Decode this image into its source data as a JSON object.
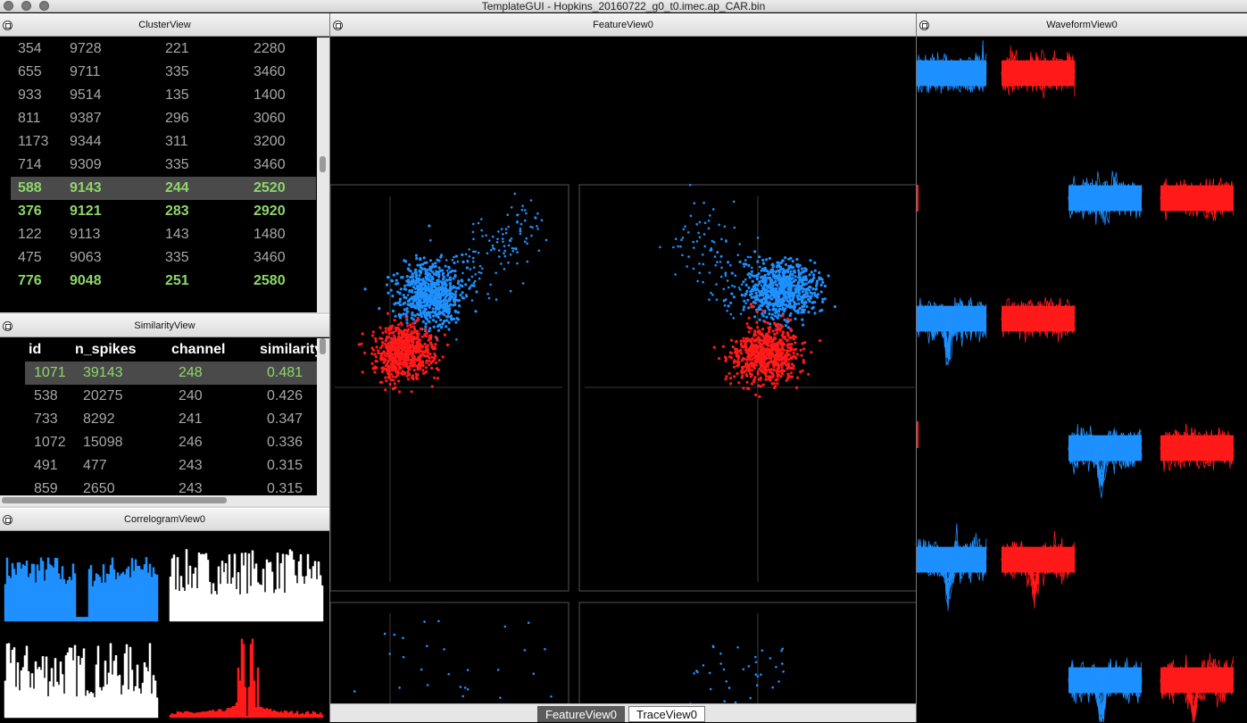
{
  "window": {
    "title": "TemplateGUI - Hopkins_20160722_g0_t0.imec.ap_CAR.bin"
  },
  "cluster_view": {
    "title": "ClusterView",
    "rows": [
      {
        "id": "354",
        "n_spikes": "9728",
        "channel": "221",
        "depth": "2280",
        "state": "normal"
      },
      {
        "id": "655",
        "n_spikes": "9711",
        "channel": "335",
        "depth": "3460",
        "state": "normal"
      },
      {
        "id": "933",
        "n_spikes": "9514",
        "channel": "135",
        "depth": "1400",
        "state": "normal"
      },
      {
        "id": "811",
        "n_spikes": "9387",
        "channel": "296",
        "depth": "3060",
        "state": "normal"
      },
      {
        "id": "1173",
        "n_spikes": "9344",
        "channel": "311",
        "depth": "3200",
        "state": "normal"
      },
      {
        "id": "714",
        "n_spikes": "9309",
        "channel": "335",
        "depth": "3460",
        "state": "normal"
      },
      {
        "id": "588",
        "n_spikes": "9143",
        "channel": "244",
        "depth": "2520",
        "state": "selected"
      },
      {
        "id": "376",
        "n_spikes": "9121",
        "channel": "283",
        "depth": "2920",
        "state": "good"
      },
      {
        "id": "122",
        "n_spikes": "9113",
        "channel": "143",
        "depth": "1480",
        "state": "normal"
      },
      {
        "id": "475",
        "n_spikes": "9063",
        "channel": "335",
        "depth": "3460",
        "state": "normal"
      },
      {
        "id": "776",
        "n_spikes": "9048",
        "channel": "251",
        "depth": "2580",
        "state": "good"
      }
    ]
  },
  "similarity_view": {
    "title": "SimilarityView",
    "columns": [
      "id",
      "n_spikes",
      "channel",
      "similarity"
    ],
    "rows": [
      {
        "id": "1071",
        "n_spikes": "39143",
        "channel": "248",
        "similarity": "0.481",
        "state": "selected"
      },
      {
        "id": "538",
        "n_spikes": "20275",
        "channel": "240",
        "similarity": "0.426",
        "state": "normal"
      },
      {
        "id": "733",
        "n_spikes": "8292",
        "channel": "241",
        "similarity": "0.347",
        "state": "normal"
      },
      {
        "id": "1072",
        "n_spikes": "15098",
        "channel": "246",
        "similarity": "0.336",
        "state": "normal"
      },
      {
        "id": "491",
        "n_spikes": "477",
        "channel": "243",
        "similarity": "0.315",
        "state": "normal"
      },
      {
        "id": "859",
        "n_spikes": "2650",
        "channel": "243",
        "similarity": "0.315",
        "state": "normal"
      }
    ]
  },
  "correlogram_view": {
    "title": "CorrelogramView0"
  },
  "feature_view": {
    "title": "FeatureView0"
  },
  "waveform_view": {
    "title": "WaveformView0"
  },
  "tabs": [
    {
      "label": "FeatureView0",
      "active": true
    },
    {
      "label": "TraceView0",
      "active": false
    }
  ],
  "colors": {
    "cluster_a": "#1e90ff",
    "cluster_b": "#ff1a1a",
    "good": "#8ed66b",
    "selected_row": "#4a4a4a"
  },
  "icons": {
    "dock_float": "float-icon"
  }
}
